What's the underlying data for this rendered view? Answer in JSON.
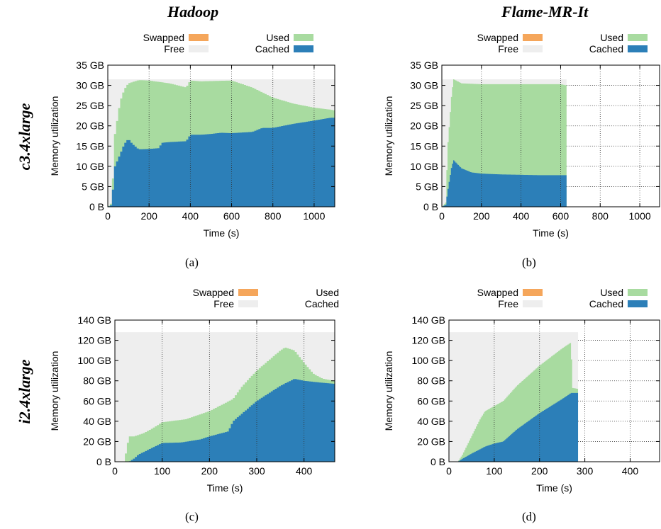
{
  "column_titles": [
    "Hadoop",
    "Flame-MR-It"
  ],
  "row_titles": [
    "c3.4xlarge",
    "i2.4xlarge"
  ],
  "colors": {
    "Swapped": "#f5a65b",
    "Free": "#eeeeee",
    "Used": "#a8dba0",
    "Cached": "#2c7fb8"
  },
  "chart_data": [
    {
      "type": "area",
      "caption": "(a)",
      "xlabel": "Time (s)",
      "ylabel": "Memory utilization",
      "xlim": [
        0,
        1100
      ],
      "ylim": [
        0,
        35
      ],
      "xticks": [
        "0",
        "200",
        "400",
        "600",
        "800",
        "1000"
      ],
      "yticks": [
        "0 B",
        "5 GB",
        "10 GB",
        "15 GB",
        "20 GB",
        "25 GB",
        "30 GB",
        "35 GB"
      ],
      "legend": [
        "Swapped",
        "Used",
        "Free",
        "Cached"
      ],
      "total_gb": 31.5,
      "series": [
        {
          "name": "Cached",
          "x": [
            0,
            20,
            30,
            35,
            60,
            80,
            100,
            120,
            150,
            200,
            250,
            260,
            300,
            380,
            400,
            450,
            500,
            550,
            600,
            700,
            750,
            800,
            900,
            1000,
            1080,
            1100
          ],
          "y": [
            0,
            0.5,
            8,
            10,
            13,
            15.5,
            16.8,
            15.5,
            14.2,
            14.3,
            14.5,
            15.8,
            16,
            16.2,
            17.8,
            17.8,
            18,
            18.3,
            18.2,
            18.5,
            19.5,
            19.5,
            20.5,
            21.3,
            22,
            22
          ]
        },
        {
          "name": "Used",
          "x": [
            0,
            20,
            30,
            35,
            60,
            80,
            100,
            150,
            200,
            300,
            380,
            400,
            450,
            600,
            700,
            800,
            900,
            1000,
            1080,
            1100
          ],
          "y": [
            0,
            1,
            13,
            18,
            26,
            29,
            30.5,
            31.3,
            31.2,
            30.5,
            29.5,
            31.2,
            31,
            31.2,
            29.5,
            27,
            25.5,
            24.5,
            24,
            23.8
          ]
        }
      ]
    },
    {
      "type": "area",
      "caption": "(b)",
      "xlabel": "Time (s)",
      "ylabel": "Memory utilization",
      "xlim": [
        0,
        1100
      ],
      "ylim": [
        0,
        35
      ],
      "xticks": [
        "0",
        "200",
        "400",
        "600",
        "800",
        "1000"
      ],
      "yticks": [
        "0 B",
        "5 GB",
        "10 GB",
        "15 GB",
        "20 GB",
        "25 GB",
        "30 GB",
        "35 GB"
      ],
      "legend": [
        "Swapped",
        "Used",
        "Free",
        "Cached"
      ],
      "total_gb": 31.5,
      "end_time": 630,
      "series": [
        {
          "name": "Cached",
          "x": [
            0,
            20,
            30,
            50,
            60,
            80,
            100,
            150,
            200,
            300,
            400,
            500,
            630
          ],
          "y": [
            0,
            0.5,
            4,
            10,
            11.5,
            10.5,
            9.5,
            8.5,
            8.2,
            8,
            7.9,
            7.8,
            7.8
          ]
        },
        {
          "name": "Used",
          "x": [
            0,
            20,
            30,
            50,
            60,
            80,
            100,
            200,
            400,
            600,
            630
          ],
          "y": [
            0,
            1,
            15,
            28,
            31.5,
            31,
            30.5,
            30.3,
            30.3,
            30.3,
            30
          ]
        }
      ]
    },
    {
      "type": "area",
      "caption": "(c)",
      "xlabel": "Time (s)",
      "ylabel": "Memory utilization",
      "xlim": [
        0,
        465
      ],
      "ylim": [
        0,
        140
      ],
      "xticks": [
        "0",
        "100",
        "200",
        "300",
        "400"
      ],
      "yticks": [
        "0 B",
        "20 GB",
        "40 GB",
        "60 GB",
        "80 GB",
        "100 GB",
        "120 GB",
        "140 GB"
      ],
      "legend": [
        "Swapped",
        "Used",
        "Free",
        "Cached"
      ],
      "total_gb": 128,
      "series": [
        {
          "name": "Cached",
          "x": [
            0,
            30,
            40,
            50,
            80,
            100,
            140,
            180,
            200,
            240,
            250,
            260,
            300,
            350,
            380,
            400,
            440,
            465
          ],
          "y": [
            0,
            0,
            3,
            7,
            14,
            18.5,
            19,
            22,
            25,
            30,
            40,
            44,
            60,
            75,
            82,
            80,
            78,
            77
          ]
        },
        {
          "name": "Used",
          "x": [
            0,
            20,
            30,
            40,
            60,
            80,
            100,
            150,
            200,
            250,
            270,
            300,
            350,
            360,
            380,
            400,
            420,
            440,
            465
          ],
          "y": [
            0,
            0,
            25,
            25,
            28,
            33,
            39,
            42,
            50,
            62,
            75,
            90,
            110,
            113,
            110,
            98,
            87,
            82,
            80
          ]
        }
      ]
    },
    {
      "type": "area",
      "caption": "(d)",
      "xlabel": "Time (s)",
      "ylabel": "Memory utilization",
      "xlim": [
        0,
        465
      ],
      "ylim": [
        0,
        140
      ],
      "xticks": [
        "0",
        "100",
        "200",
        "300",
        "400"
      ],
      "yticks": [
        "0 B",
        "20 GB",
        "40 GB",
        "60 GB",
        "80 GB",
        "100 GB",
        "120 GB",
        "140 GB"
      ],
      "legend": [
        "Swapped",
        "Used",
        "Free",
        "Cached"
      ],
      "total_gb": 128,
      "end_time": 285,
      "series": [
        {
          "name": "Cached",
          "x": [
            0,
            20,
            30,
            50,
            80,
            100,
            120,
            150,
            200,
            250,
            270,
            285
          ],
          "y": [
            0,
            0,
            3,
            8,
            15,
            18,
            20,
            32,
            48,
            62,
            68,
            68
          ]
        },
        {
          "name": "Used",
          "x": [
            0,
            20,
            30,
            50,
            70,
            80,
            100,
            120,
            150,
            200,
            250,
            270,
            272,
            285
          ],
          "y": [
            0,
            0,
            7,
            25,
            43,
            50,
            55,
            60,
            75,
            95,
            112,
            118,
            73,
            72
          ]
        }
      ]
    }
  ]
}
